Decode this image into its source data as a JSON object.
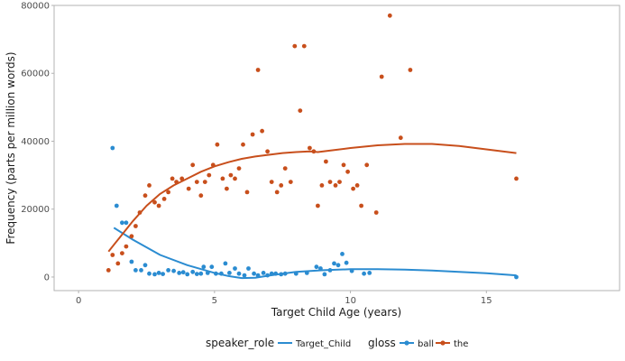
{
  "chart_data": {
    "type": "scatter",
    "xlabel": "Target Child Age (years)",
    "ylabel": "Frequency (parts per million words)",
    "xlim": [
      -0.9,
      19.9
    ],
    "ylim": [
      -4000,
      80000
    ],
    "x_ticks": [
      0,
      5,
      10,
      15
    ],
    "y_ticks": [
      0,
      20000,
      40000,
      60000,
      80000
    ],
    "x_tick_labels": [
      "0",
      "5",
      "10",
      "15"
    ],
    "y_tick_labels": [
      "0",
      "20000",
      "40000",
      "60000",
      "80000"
    ],
    "grid": false,
    "legend_position": "bottom",
    "legends": {
      "speaker_role": {
        "title": "speaker_role",
        "items": [
          {
            "label": "Target_Child"
          }
        ]
      },
      "gloss": {
        "title": "gloss",
        "items": [
          {
            "label": "ball"
          },
          {
            "label": "the"
          }
        ]
      }
    },
    "series": [
      {
        "name": "ball",
        "color": "#2b8cd1",
        "points": [
          [
            1.25,
            38000
          ],
          [
            1.4,
            21000
          ],
          [
            1.6,
            16000
          ],
          [
            1.75,
            16000
          ],
          [
            1.95,
            4500
          ],
          [
            2.1,
            2000
          ],
          [
            2.3,
            2000
          ],
          [
            2.45,
            3500
          ],
          [
            2.6,
            1000
          ],
          [
            2.8,
            800
          ],
          [
            2.95,
            1200
          ],
          [
            3.1,
            900
          ],
          [
            3.3,
            2000
          ],
          [
            3.5,
            1800
          ],
          [
            3.7,
            1200
          ],
          [
            3.85,
            1400
          ],
          [
            4.0,
            800
          ],
          [
            4.2,
            1500
          ],
          [
            4.35,
            900
          ],
          [
            4.5,
            1000
          ],
          [
            4.6,
            3000
          ],
          [
            4.75,
            1200
          ],
          [
            4.9,
            3000
          ],
          [
            5.05,
            1000
          ],
          [
            5.25,
            1000
          ],
          [
            5.4,
            4000
          ],
          [
            5.55,
            1200
          ],
          [
            5.75,
            2500
          ],
          [
            5.9,
            1000
          ],
          [
            6.1,
            500
          ],
          [
            6.25,
            2500
          ],
          [
            6.45,
            1000
          ],
          [
            6.6,
            500
          ],
          [
            6.8,
            1200
          ],
          [
            6.95,
            500
          ],
          [
            7.1,
            1000
          ],
          [
            7.25,
            1000
          ],
          [
            7.45,
            800
          ],
          [
            7.6,
            1000
          ],
          [
            8.0,
            1000
          ],
          [
            8.4,
            1200
          ],
          [
            8.75,
            3000
          ],
          [
            8.9,
            2500
          ],
          [
            9.05,
            800
          ],
          [
            9.25,
            2000
          ],
          [
            9.4,
            4000
          ],
          [
            9.55,
            3500
          ],
          [
            9.7,
            6800
          ],
          [
            9.85,
            4200
          ],
          [
            10.05,
            1800
          ],
          [
            10.5,
            1000
          ],
          [
            10.7,
            1200
          ],
          [
            16.1,
            0
          ]
        ],
        "trend": [
          [
            1.3,
            14500
          ],
          [
            2.0,
            11000
          ],
          [
            3.0,
            6500
          ],
          [
            4.0,
            3500
          ],
          [
            5.0,
            1200
          ],
          [
            5.5,
            300
          ],
          [
            6.0,
            -300
          ],
          [
            6.5,
            -200
          ],
          [
            7.0,
            400
          ],
          [
            7.5,
            1000
          ],
          [
            8.0,
            1500
          ],
          [
            9.0,
            2000
          ],
          [
            10.0,
            2300
          ],
          [
            11.0,
            2300
          ],
          [
            12.0,
            2200
          ],
          [
            13.0,
            1900
          ],
          [
            14.0,
            1500
          ],
          [
            15.0,
            1100
          ],
          [
            16.1,
            500
          ]
        ]
      },
      {
        "name": "the",
        "color": "#c84f1c",
        "points": [
          [
            1.1,
            2000
          ],
          [
            1.25,
            6500
          ],
          [
            1.45,
            4000
          ],
          [
            1.6,
            7000
          ],
          [
            1.75,
            9000
          ],
          [
            1.95,
            12000
          ],
          [
            2.1,
            15000
          ],
          [
            2.25,
            19000
          ],
          [
            2.45,
            24000
          ],
          [
            2.6,
            27000
          ],
          [
            2.8,
            22000
          ],
          [
            2.95,
            21000
          ],
          [
            3.15,
            23000
          ],
          [
            3.3,
            25000
          ],
          [
            3.45,
            29000
          ],
          [
            3.6,
            28000
          ],
          [
            3.8,
            29000
          ],
          [
            4.05,
            26000
          ],
          [
            4.2,
            33000
          ],
          [
            4.35,
            28000
          ],
          [
            4.5,
            24000
          ],
          [
            4.65,
            28000
          ],
          [
            4.8,
            30000
          ],
          [
            4.95,
            33000
          ],
          [
            5.1,
            39000
          ],
          [
            5.3,
            29000
          ],
          [
            5.45,
            26000
          ],
          [
            5.6,
            30000
          ],
          [
            5.75,
            29000
          ],
          [
            5.9,
            32000
          ],
          [
            6.05,
            39000
          ],
          [
            6.2,
            25000
          ],
          [
            6.4,
            42000
          ],
          [
            6.6,
            61000
          ],
          [
            6.75,
            43000
          ],
          [
            6.95,
            37000
          ],
          [
            7.1,
            28000
          ],
          [
            7.3,
            25000
          ],
          [
            7.45,
            27000
          ],
          [
            7.6,
            32000
          ],
          [
            7.8,
            28000
          ],
          [
            7.95,
            68000
          ],
          [
            8.15,
            49000
          ],
          [
            8.3,
            68000
          ],
          [
            8.5,
            38000
          ],
          [
            8.65,
            37000
          ],
          [
            8.8,
            21000
          ],
          [
            8.95,
            27000
          ],
          [
            9.1,
            34000
          ],
          [
            9.25,
            28000
          ],
          [
            9.45,
            27000
          ],
          [
            9.6,
            28000
          ],
          [
            9.75,
            33000
          ],
          [
            9.9,
            31000
          ],
          [
            10.1,
            26000
          ],
          [
            10.25,
            27000
          ],
          [
            10.4,
            21000
          ],
          [
            10.6,
            33000
          ],
          [
            10.95,
            19000
          ],
          [
            11.15,
            59000
          ],
          [
            11.45,
            77000
          ],
          [
            11.85,
            41000
          ],
          [
            12.2,
            61000
          ],
          [
            16.1,
            29000
          ]
        ],
        "trend": [
          [
            1.1,
            7500
          ],
          [
            1.5,
            11500
          ],
          [
            2.0,
            16500
          ],
          [
            2.5,
            21000
          ],
          [
            3.0,
            24500
          ],
          [
            3.5,
            27000
          ],
          [
            4.0,
            29000
          ],
          [
            4.5,
            31000
          ],
          [
            5.0,
            32600
          ],
          [
            5.5,
            33800
          ],
          [
            6.0,
            34800
          ],
          [
            6.5,
            35500
          ],
          [
            7.0,
            36000
          ],
          [
            7.5,
            36500
          ],
          [
            8.0,
            36800
          ],
          [
            8.5,
            37000
          ],
          [
            8.8,
            36800
          ],
          [
            9.2,
            37200
          ],
          [
            10.0,
            38000
          ],
          [
            11.0,
            38800
          ],
          [
            12.0,
            39200
          ],
          [
            13.0,
            39200
          ],
          [
            14.0,
            38600
          ],
          [
            15.0,
            37600
          ],
          [
            16.1,
            36500
          ]
        ]
      }
    ]
  }
}
